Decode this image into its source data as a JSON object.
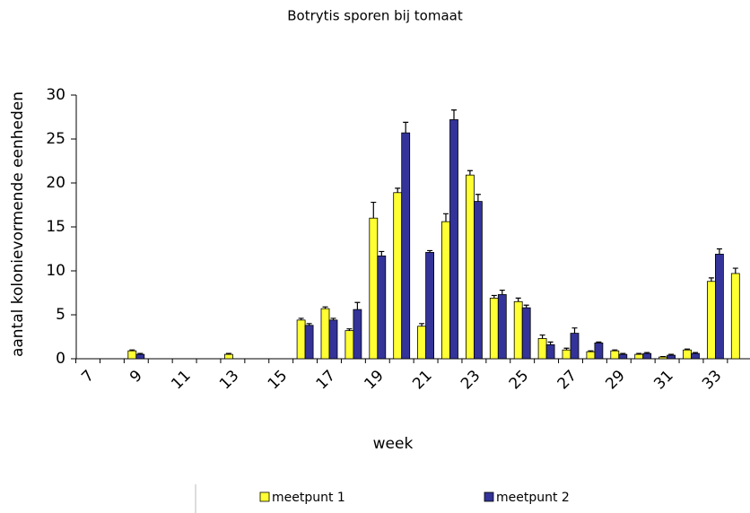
{
  "chart_data": {
    "type": "bar",
    "title": "Botrytis sporen bij tomaat",
    "x_label": "week",
    "y_label": "aantal kolonievormende eenheden",
    "categories": [
      "7",
      null,
      "9",
      null,
      "11",
      null,
      "13",
      null,
      "15",
      null,
      "17",
      null,
      "19",
      null,
      "21",
      null,
      "23",
      null,
      "25",
      null,
      "27",
      null,
      "29",
      null,
      "31",
      null,
      "33",
      null
    ],
    "series": [
      {
        "name": "meetpunt 1",
        "color": "#ffff33",
        "values": [
          0,
          0,
          0.9,
          0,
          0,
          0,
          0.5,
          0,
          0,
          4.4,
          5.7,
          3.2,
          16,
          18.9,
          3.7,
          15.6,
          20.9,
          6.9,
          6.5,
          2.3,
          1.0,
          0.8,
          0.9,
          0.5,
          0.2,
          1.0,
          8.8,
          9.7
        ],
        "errors": [
          0,
          0,
          0.1,
          0,
          0,
          0,
          0.1,
          0,
          0,
          0.2,
          0.2,
          0.2,
          1.8,
          0.5,
          0.3,
          0.9,
          0.5,
          0.3,
          0.4,
          0.4,
          0.2,
          0.1,
          0.1,
          0.1,
          0.05,
          0.1,
          0.4,
          0.6
        ]
      },
      {
        "name": "meetpunt 2",
        "color": "#333399",
        "values": [
          0,
          0,
          0.5,
          0,
          0,
          0,
          0,
          0,
          0,
          3.8,
          4.4,
          5.6,
          11.7,
          25.7,
          12.1,
          27.2,
          17.9,
          7.3,
          5.8,
          1.6,
          2.9,
          1.8,
          0.5,
          0.6,
          0.4,
          0.6,
          11.9,
          null
        ],
        "errors": [
          0,
          0,
          0.1,
          0,
          0,
          0,
          0,
          0,
          0,
          0.2,
          0.2,
          0.8,
          0.5,
          1.2,
          0.2,
          1.1,
          0.8,
          0.5,
          0.3,
          0.3,
          0.6,
          0.1,
          0.1,
          0.1,
          0.1,
          0.1,
          0.6,
          null
        ]
      }
    ],
    "ylim": [
      0,
      30
    ],
    "yticks": [
      0,
      5,
      10,
      15,
      20,
      25,
      30
    ],
    "grid": false
  }
}
